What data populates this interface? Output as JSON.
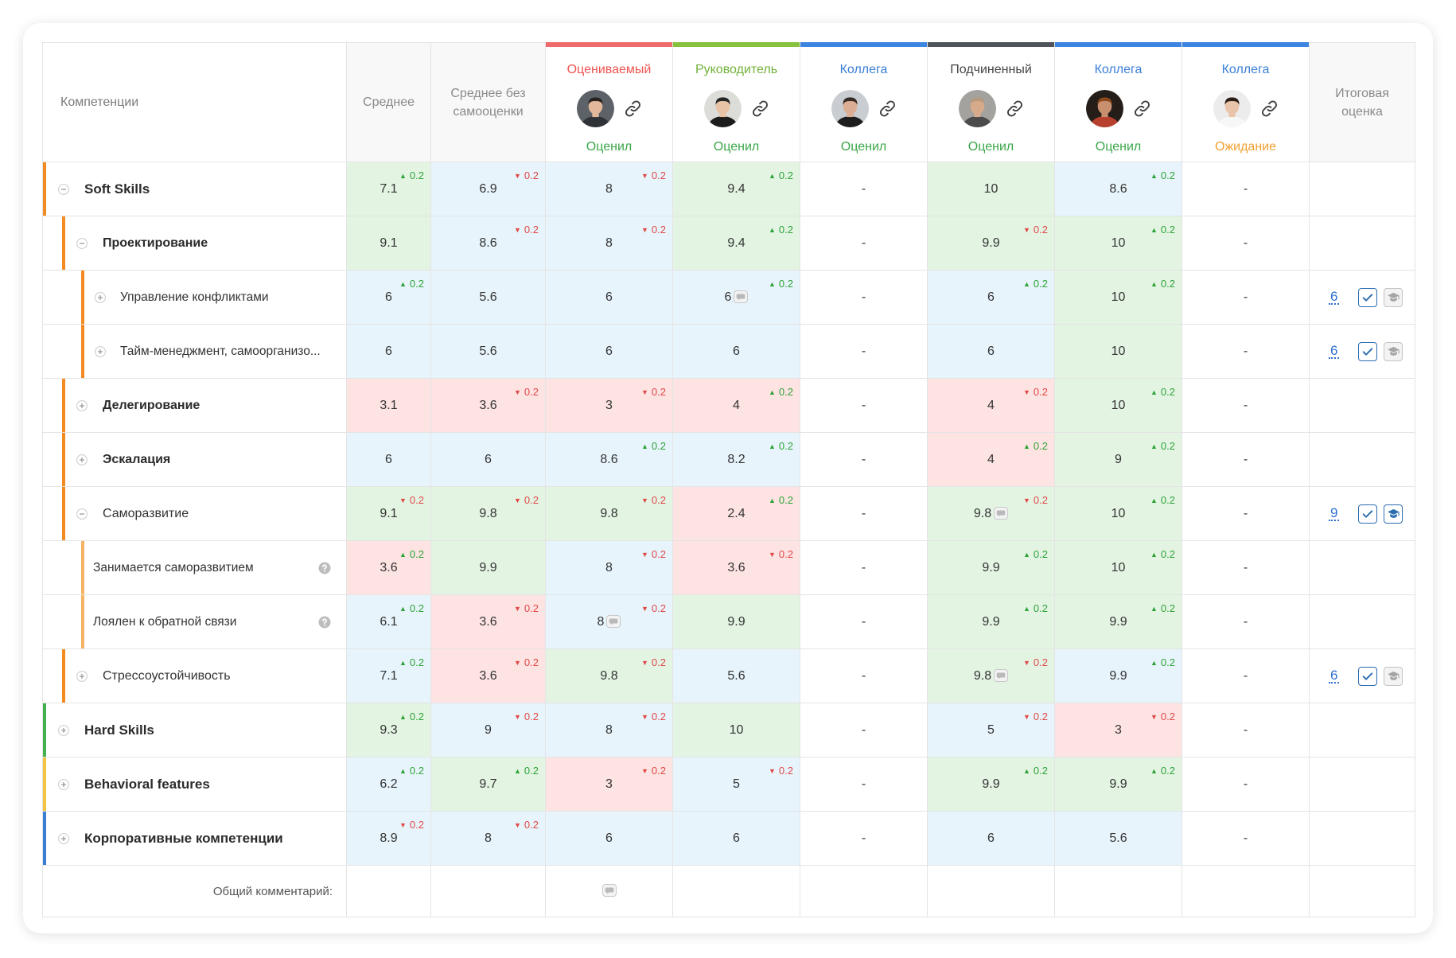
{
  "header": {
    "competencies": "Компетенции",
    "average": "Среднее",
    "average_no_self": "Среднее без самооценки",
    "final": "Итоговая оценка",
    "evaluators": [
      {
        "role": "Оцениваемый",
        "status": "Оценил",
        "bar_color": "#ef6b6b",
        "role_color": "#ef5350",
        "status_color": "#3aa648"
      },
      {
        "role": "Руководитель",
        "status": "Оценил",
        "bar_color": "#86c23e",
        "role_color": "#72b23a",
        "status_color": "#3aa648"
      },
      {
        "role": "Коллега",
        "status": "Оценил",
        "bar_color": "#3d85e0",
        "role_color": "#3a7fd6",
        "status_color": "#3aa648"
      },
      {
        "role": "Подчиненный",
        "status": "Оценил",
        "bar_color": "#4f545b",
        "role_color": "#444444",
        "status_color": "#3aa648"
      },
      {
        "role": "Коллега",
        "status": "Оценил",
        "bar_color": "#3d85e0",
        "role_color": "#3a7fd6",
        "status_color": "#3aa648"
      },
      {
        "role": "Коллега",
        "status": "Ожидание",
        "bar_color": "#3d85e0",
        "role_color": "#3a7fd6",
        "status_color": "#f0a030"
      }
    ]
  },
  "rows": [
    {
      "label": "Soft Skills",
      "level": 0,
      "strong": true,
      "toggle": "collapse",
      "bar_color": "#f28b22",
      "help": false,
      "cells": [
        {
          "v": "7.1",
          "tone": "green",
          "delta": {
            "dir": "up",
            "value": "0.2"
          }
        },
        {
          "v": "6.9",
          "tone": "blue",
          "delta": {
            "dir": "down",
            "value": "0.2"
          }
        },
        {
          "v": "8",
          "tone": "blue",
          "delta": {
            "dir": "down",
            "value": "0.2"
          }
        },
        {
          "v": "9.4",
          "tone": "green",
          "delta": {
            "dir": "up",
            "value": "0.2"
          }
        },
        {
          "v": "-",
          "tone": "none"
        },
        {
          "v": "10",
          "tone": "green"
        },
        {
          "v": "8.6",
          "tone": "blue",
          "delta": {
            "dir": "up",
            "value": "0.2"
          }
        },
        {
          "v": "-",
          "tone": "none"
        }
      ],
      "final": null
    },
    {
      "label": "Проектирование",
      "level": 1,
      "strong": true,
      "toggle": "collapse",
      "bar_color": "#f28b22",
      "help": false,
      "cells": [
        {
          "v": "9.1",
          "tone": "green"
        },
        {
          "v": "8.6",
          "tone": "blue",
          "delta": {
            "dir": "down",
            "value": "0.2"
          }
        },
        {
          "v": "8",
          "tone": "blue",
          "delta": {
            "dir": "down",
            "value": "0.2"
          }
        },
        {
          "v": "9.4",
          "tone": "green",
          "delta": {
            "dir": "up",
            "value": "0.2"
          }
        },
        {
          "v": "-",
          "tone": "none"
        },
        {
          "v": "9.9",
          "tone": "green",
          "delta": {
            "dir": "down",
            "value": "0.2"
          }
        },
        {
          "v": "10",
          "tone": "green",
          "delta": {
            "dir": "up",
            "value": "0.2"
          }
        },
        {
          "v": "-",
          "tone": "none"
        }
      ],
      "final": null
    },
    {
      "label": "Управление конфликтами",
      "level": 2,
      "strong": false,
      "toggle": "expand",
      "bar_color": "#f28b22",
      "help": false,
      "cells": [
        {
          "v": "6",
          "tone": "blue",
          "delta": {
            "dir": "up",
            "value": "0.2"
          }
        },
        {
          "v": "5.6",
          "tone": "blue"
        },
        {
          "v": "6",
          "tone": "blue"
        },
        {
          "v": "6",
          "tone": "blue",
          "delta": {
            "dir": "up",
            "value": "0.2"
          },
          "comment": true
        },
        {
          "v": "-",
          "tone": "none"
        },
        {
          "v": "6",
          "tone": "blue",
          "delta": {
            "dir": "up",
            "value": "0.2"
          }
        },
        {
          "v": "10",
          "tone": "green",
          "delta": {
            "dir": "up",
            "value": "0.2"
          }
        },
        {
          "v": "-",
          "tone": "none"
        }
      ],
      "final": {
        "value": "6",
        "training_active": false
      }
    },
    {
      "label": "Тайм-менеджмент, самоорганизо...",
      "level": 2,
      "strong": false,
      "toggle": "expand",
      "bar_color": "#f28b22",
      "help": false,
      "cells": [
        {
          "v": "6",
          "tone": "blue"
        },
        {
          "v": "5.6",
          "tone": "blue"
        },
        {
          "v": "6",
          "tone": "blue"
        },
        {
          "v": "6",
          "tone": "blue"
        },
        {
          "v": "-",
          "tone": "none"
        },
        {
          "v": "6",
          "tone": "blue"
        },
        {
          "v": "10",
          "tone": "green"
        },
        {
          "v": "-",
          "tone": "none"
        }
      ],
      "final": {
        "value": "6",
        "training_active": false
      }
    },
    {
      "label": "Делегирование",
      "level": 1,
      "strong": true,
      "toggle": "expand",
      "bar_color": "#f28b22",
      "help": false,
      "cells": [
        {
          "v": "3.1",
          "tone": "red"
        },
        {
          "v": "3.6",
          "tone": "red",
          "delta": {
            "dir": "down",
            "value": "0.2"
          }
        },
        {
          "v": "3",
          "tone": "red",
          "delta": {
            "dir": "down",
            "value": "0.2"
          }
        },
        {
          "v": "4",
          "tone": "red",
          "delta": {
            "dir": "up",
            "value": "0.2"
          }
        },
        {
          "v": "-",
          "tone": "none"
        },
        {
          "v": "4",
          "tone": "red",
          "delta": {
            "dir": "down",
            "value": "0.2"
          }
        },
        {
          "v": "10",
          "tone": "green",
          "delta": {
            "dir": "up",
            "value": "0.2"
          }
        },
        {
          "v": "-",
          "tone": "none"
        }
      ],
      "final": null
    },
    {
      "label": "Эскалация",
      "level": 1,
      "strong": true,
      "toggle": "expand",
      "bar_color": "#f28b22",
      "help": false,
      "cells": [
        {
          "v": "6",
          "tone": "blue"
        },
        {
          "v": "6",
          "tone": "blue"
        },
        {
          "v": "8.6",
          "tone": "blue",
          "delta": {
            "dir": "up",
            "value": "0.2"
          }
        },
        {
          "v": "8.2",
          "tone": "blue",
          "delta": {
            "dir": "up",
            "value": "0.2"
          }
        },
        {
          "v": "-",
          "tone": "none"
        },
        {
          "v": "4",
          "tone": "red",
          "delta": {
            "dir": "up",
            "value": "0.2"
          }
        },
        {
          "v": "9",
          "tone": "green",
          "delta": {
            "dir": "up",
            "value": "0.2"
          }
        },
        {
          "v": "-",
          "tone": "none"
        }
      ],
      "final": null
    },
    {
      "label": "Саморазвитие",
      "level": 1,
      "strong": false,
      "toggle": "collapse",
      "bar_color": "#f28b22",
      "help": false,
      "cells": [
        {
          "v": "9.1",
          "tone": "green",
          "delta": {
            "dir": "down",
            "value": "0.2"
          }
        },
        {
          "v": "9.8",
          "tone": "green",
          "delta": {
            "dir": "down",
            "value": "0.2"
          }
        },
        {
          "v": "9.8",
          "tone": "green",
          "delta": {
            "dir": "down",
            "value": "0.2"
          }
        },
        {
          "v": "2.4",
          "tone": "red",
          "delta": {
            "dir": "up",
            "value": "0.2"
          }
        },
        {
          "v": "-",
          "tone": "none"
        },
        {
          "v": "9.8",
          "tone": "green",
          "delta": {
            "dir": "down",
            "value": "0.2"
          },
          "comment": true
        },
        {
          "v": "10",
          "tone": "green",
          "delta": {
            "dir": "up",
            "value": "0.2"
          }
        },
        {
          "v": "-",
          "tone": "none"
        }
      ],
      "final": {
        "value": "9",
        "training_active": true
      }
    },
    {
      "label": "Занимается саморазвитием",
      "level": 2,
      "strong": false,
      "toggle": null,
      "bar_color": "#f7b264",
      "help": true,
      "cells": [
        {
          "v": "3.6",
          "tone": "red",
          "delta": {
            "dir": "up",
            "value": "0.2"
          }
        },
        {
          "v": "9.9",
          "tone": "green"
        },
        {
          "v": "8",
          "tone": "blue",
          "delta": {
            "dir": "down",
            "value": "0.2"
          }
        },
        {
          "v": "3.6",
          "tone": "red",
          "delta": {
            "dir": "down",
            "value": "0.2"
          }
        },
        {
          "v": "-",
          "tone": "none"
        },
        {
          "v": "9.9",
          "tone": "green",
          "delta": {
            "dir": "up",
            "value": "0.2"
          }
        },
        {
          "v": "10",
          "tone": "green",
          "delta": {
            "dir": "up",
            "value": "0.2"
          }
        },
        {
          "v": "-",
          "tone": "none"
        }
      ],
      "final": null
    },
    {
      "label": "Лоялен к обратной связи",
      "level": 2,
      "strong": false,
      "toggle": null,
      "bar_color": "#f7b264",
      "help": true,
      "cells": [
        {
          "v": "6.1",
          "tone": "blue",
          "delta": {
            "dir": "up",
            "value": "0.2"
          }
        },
        {
          "v": "3.6",
          "tone": "red",
          "delta": {
            "dir": "down",
            "value": "0.2"
          }
        },
        {
          "v": "8",
          "tone": "blue",
          "delta": {
            "dir": "down",
            "value": "0.2"
          },
          "comment": true
        },
        {
          "v": "9.9",
          "tone": "green"
        },
        {
          "v": "-",
          "tone": "none"
        },
        {
          "v": "9.9",
          "tone": "green",
          "delta": {
            "dir": "up",
            "value": "0.2"
          }
        },
        {
          "v": "9.9",
          "tone": "green",
          "delta": {
            "dir": "up",
            "value": "0.2"
          }
        },
        {
          "v": "-",
          "tone": "none"
        }
      ],
      "final": null
    },
    {
      "label": "Стрессоустойчивость",
      "level": 1,
      "strong": false,
      "toggle": "expand",
      "bar_color": "#f28b22",
      "help": false,
      "cells": [
        {
          "v": "7.1",
          "tone": "blue",
          "delta": {
            "dir": "up",
            "value": "0.2"
          }
        },
        {
          "v": "3.6",
          "tone": "red",
          "delta": {
            "dir": "down",
            "value": "0.2"
          }
        },
        {
          "v": "9.8",
          "tone": "green",
          "delta": {
            "dir": "down",
            "value": "0.2"
          }
        },
        {
          "v": "5.6",
          "tone": "blue"
        },
        {
          "v": "-",
          "tone": "none"
        },
        {
          "v": "9.8",
          "tone": "green",
          "delta": {
            "dir": "down",
            "value": "0.2"
          },
          "comment": true
        },
        {
          "v": "9.9",
          "tone": "blue",
          "delta": {
            "dir": "up",
            "value": "0.2"
          }
        },
        {
          "v": "-",
          "tone": "none"
        }
      ],
      "final": {
        "value": "6",
        "training_active": false
      }
    },
    {
      "label": "Hard Skills",
      "level": 0,
      "strong": true,
      "toggle": "expand",
      "bar_color": "#45b04f",
      "help": false,
      "cells": [
        {
          "v": "9.3",
          "tone": "green",
          "delta": {
            "dir": "up",
            "value": "0.2"
          }
        },
        {
          "v": "9",
          "tone": "blue",
          "delta": {
            "dir": "down",
            "value": "0.2"
          }
        },
        {
          "v": "8",
          "tone": "blue",
          "delta": {
            "dir": "down",
            "value": "0.2"
          }
        },
        {
          "v": "10",
          "tone": "green"
        },
        {
          "v": "-",
          "tone": "none"
        },
        {
          "v": "5",
          "tone": "blue",
          "delta": {
            "dir": "down",
            "value": "0.2"
          }
        },
        {
          "v": "3",
          "tone": "red",
          "delta": {
            "dir": "down",
            "value": "0.2"
          }
        },
        {
          "v": "-",
          "tone": "none"
        }
      ],
      "final": null
    },
    {
      "label": "Behavioral features",
      "level": 0,
      "strong": true,
      "toggle": "expand",
      "bar_color": "#f5c443",
      "help": false,
      "cells": [
        {
          "v": "6.2",
          "tone": "blue",
          "delta": {
            "dir": "up",
            "value": "0.2"
          }
        },
        {
          "v": "9.7",
          "tone": "green",
          "delta": {
            "dir": "up",
            "value": "0.2"
          }
        },
        {
          "v": "3",
          "tone": "red",
          "delta": {
            "dir": "down",
            "value": "0.2"
          }
        },
        {
          "v": "5",
          "tone": "blue",
          "delta": {
            "dir": "down",
            "value": "0.2"
          }
        },
        {
          "v": "-",
          "tone": "none"
        },
        {
          "v": "9.9",
          "tone": "green",
          "delta": {
            "dir": "up",
            "value": "0.2"
          }
        },
        {
          "v": "9.9",
          "tone": "green",
          "delta": {
            "dir": "up",
            "value": "0.2"
          }
        },
        {
          "v": "-",
          "tone": "none"
        }
      ],
      "final": null
    },
    {
      "label": "Корпоративные компетенции",
      "level": 0,
      "strong": true,
      "toggle": "expand",
      "bar_color": "#3a7fd5",
      "help": false,
      "cells": [
        {
          "v": "8.9",
          "tone": "blue",
          "delta": {
            "dir": "down",
            "value": "0.2"
          }
        },
        {
          "v": "8",
          "tone": "blue",
          "delta": {
            "dir": "down",
            "value": "0.2"
          }
        },
        {
          "v": "6",
          "tone": "blue"
        },
        {
          "v": "6",
          "tone": "blue"
        },
        {
          "v": "-",
          "tone": "none"
        },
        {
          "v": "6",
          "tone": "blue"
        },
        {
          "v": "5.6",
          "tone": "blue"
        },
        {
          "v": "-",
          "tone": "none"
        }
      ],
      "final": null
    }
  ],
  "footer": {
    "comment_label": "Общий комментарий:"
  }
}
